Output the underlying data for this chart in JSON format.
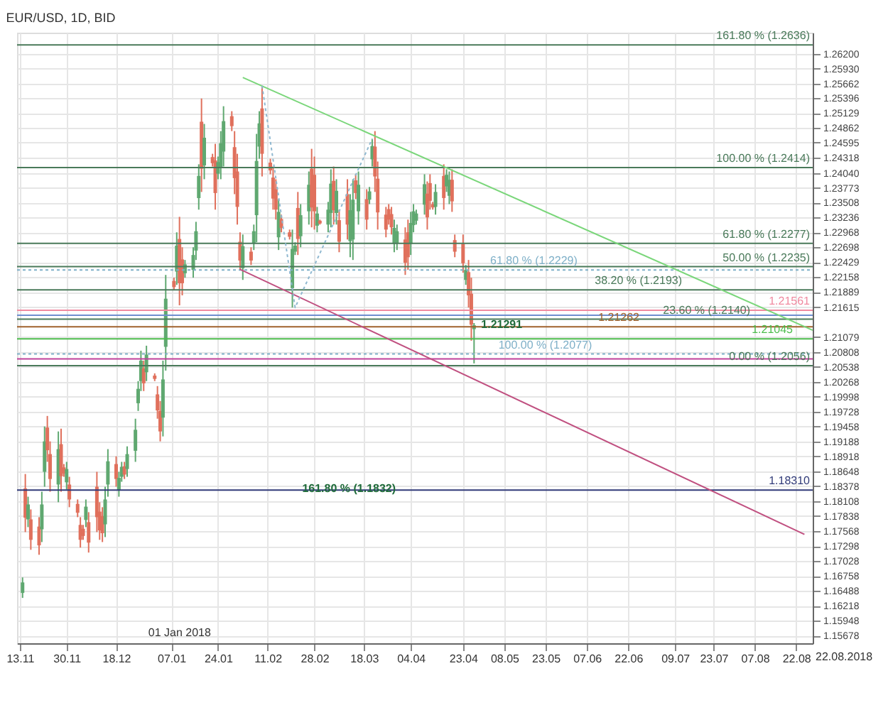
{
  "chart_data": {
    "type": "candlestick",
    "title": "EUR/USD, 1D, BID",
    "x": [
      "2017-11-14",
      "2017-11-15",
      "2017-11-16",
      "2017-11-17",
      "2017-11-20",
      "2017-11-21",
      "2017-11-22",
      "2017-11-23",
      "2017-11-24",
      "2017-11-27",
      "2017-11-28",
      "2017-11-29",
      "2017-11-30",
      "2017-12-01",
      "2017-12-04",
      "2017-12-05",
      "2017-12-06",
      "2017-12-07",
      "2017-12-08",
      "2017-12-11",
      "2017-12-12",
      "2017-12-13",
      "2017-12-14",
      "2017-12-15",
      "2017-12-18",
      "2017-12-19",
      "2017-12-20",
      "2017-12-21",
      "2017-12-22",
      "2017-12-25",
      "2017-12-26",
      "2017-12-27",
      "2017-12-28",
      "2017-12-29",
      "2018-01-01",
      "2018-01-02",
      "2018-01-03",
      "2018-01-04",
      "2018-01-05",
      "2018-01-08",
      "2018-01-09",
      "2018-01-10",
      "2018-01-11",
      "2018-01-12",
      "2018-01-15",
      "2018-01-16",
      "2018-01-17",
      "2018-01-18",
      "2018-01-19",
      "2018-01-22",
      "2018-01-23",
      "2018-01-24",
      "2018-01-25",
      "2018-01-26",
      "2018-01-29",
      "2018-01-30",
      "2018-01-31",
      "2018-02-01",
      "2018-02-02",
      "2018-02-05",
      "2018-02-06",
      "2018-02-07",
      "2018-02-08",
      "2018-02-09",
      "2018-02-12",
      "2018-02-13",
      "2018-02-14",
      "2018-02-15",
      "2018-02-16",
      "2018-02-19",
      "2018-02-20",
      "2018-02-21",
      "2018-02-22",
      "2018-02-23",
      "2018-02-26",
      "2018-02-27",
      "2018-02-28",
      "2018-03-01",
      "2018-03-02",
      "2018-03-05",
      "2018-03-06",
      "2018-03-07",
      "2018-03-08",
      "2018-03-09",
      "2018-03-12",
      "2018-03-13",
      "2018-03-14",
      "2018-03-15",
      "2018-03-16",
      "2018-03-19",
      "2018-03-20",
      "2018-03-21",
      "2018-03-22",
      "2018-03-23",
      "2018-03-26",
      "2018-03-27",
      "2018-03-28",
      "2018-03-29",
      "2018-03-30",
      "2018-04-02",
      "2018-04-03",
      "2018-04-04",
      "2018-04-05",
      "2018-04-06",
      "2018-04-09",
      "2018-04-10",
      "2018-04-11",
      "2018-04-12",
      "2018-04-13",
      "2018-04-16",
      "2018-04-17",
      "2018-04-18",
      "2018-04-19",
      "2018-04-20",
      "2018-04-23",
      "2018-04-24",
      "2018-04-25",
      "2018-04-26",
      "2018-04-27"
    ],
    "ohlc": [
      [
        1.1645,
        1.1673,
        1.1636,
        1.1664
      ],
      [
        1.1834,
        1.186,
        1.1755,
        1.1781
      ],
      [
        1.1778,
        1.1819,
        1.1764,
        1.1805
      ],
      [
        1.1778,
        1.1796,
        1.1723,
        1.1741
      ],
      [
        1.1765,
        1.1782,
        1.1714,
        1.1731
      ],
      [
        1.176,
        1.1828,
        1.1737,
        1.1805
      ],
      [
        1.1864,
        1.1946,
        1.1837,
        1.1919
      ],
      [
        1.1944,
        1.1965,
        1.1882,
        1.1903
      ],
      [
        1.1896,
        1.1919,
        1.1828,
        1.1851
      ],
      [
        1.1841,
        1.1937,
        1.1809,
        1.1905
      ],
      [
        1.1914,
        1.1942,
        1.1828,
        1.1856
      ],
      [
        1.1872,
        1.1878,
        1.1855,
        1.1861
      ],
      [
        1.1845,
        1.1882,
        1.1832,
        1.1869
      ],
      [
        1.1841,
        1.1855,
        1.18,
        1.1814
      ],
      [
        1.1806,
        1.1814,
        1.1782,
        1.179
      ],
      [
        1.1768,
        1.1782,
        1.1727,
        1.1741
      ],
      [
        1.1761,
        1.1768,
        1.1741,
        1.1748
      ],
      [
        1.1777,
        1.1814,
        1.1764,
        1.1801
      ],
      [
        1.1773,
        1.1791,
        1.1718,
        1.1736
      ],
      [
        1.1837,
        1.1864,
        1.1755,
        1.1782
      ],
      [
        1.1792,
        1.1809,
        1.1741,
        1.1758
      ],
      [
        1.1784,
        1.18,
        1.1737,
        1.1753
      ],
      [
        1.1769,
        1.1837,
        1.1746,
        1.1814
      ],
      [
        1.1841,
        1.1905,
        1.1819,
        1.1883
      ],
      [
        1.1878,
        1.1892,
        1.1837,
        1.1851
      ],
      [
        1.183,
        1.1864,
        1.1819,
        1.1853
      ],
      [
        1.1855,
        1.1882,
        1.1846,
        1.1873
      ],
      [
        1.1874,
        1.1882,
        1.1851,
        1.1859
      ],
      [
        1.1869,
        1.191,
        1.1855,
        1.1896
      ],
      [
        1.1902,
        1.196,
        1.1882,
        1.194
      ],
      [
        1.1988,
        1.2028,
        1.1974,
        1.2014
      ],
      [
        1.2028,
        1.2083,
        1.201,
        1.2065
      ],
      [
        1.2051,
        1.2065,
        1.201,
        1.2024
      ],
      [
        1.2044,
        1.2092,
        1.2028,
        1.2076
      ],
      [
        1.2038,
        1.2042,
        1.2028,
        1.2032
      ],
      [
        1.2004,
        1.2019,
        1.196,
        1.1975
      ],
      [
        1.1974,
        1.1992,
        1.1919,
        1.1937
      ],
      [
        1.1962,
        1.2065,
        1.1928,
        1.2031
      ],
      [
        1.209,
        1.222,
        1.2047,
        1.2177
      ],
      [
        1.2209,
        1.2215,
        1.2192,
        1.2198
      ],
      [
        1.2226,
        1.2297,
        1.2202,
        1.2273
      ],
      [
        1.2285,
        1.2325,
        1.2165,
        1.2205
      ],
      [
        1.2248,
        1.227,
        1.2183,
        1.2205
      ],
      [
        1.2223,
        1.2247,
        1.2215,
        1.2239
      ],
      [
        1.2229,
        1.227,
        1.2215,
        1.2256
      ],
      [
        1.2264,
        1.2316,
        1.2247,
        1.2299
      ],
      [
        1.2359,
        1.242,
        1.2338,
        1.2399
      ],
      [
        1.2497,
        1.2539,
        1.237,
        1.2412
      ],
      [
        1.2418,
        1.2493,
        1.2393,
        1.2468
      ],
      [
        1.2433,
        1.2439,
        1.2416,
        1.2422
      ],
      [
        1.2427,
        1.2457,
        1.2338,
        1.2368
      ],
      [
        1.2403,
        1.2434,
        1.2393,
        1.2424
      ],
      [
        1.2415,
        1.248,
        1.2393,
        1.2458
      ],
      [
        1.2443,
        1.2525,
        1.2416,
        1.2498
      ],
      [
        1.2507,
        1.2516,
        1.248,
        1.2489
      ],
      [
        1.2451,
        1.248,
        1.2366,
        1.2395
      ],
      [
        1.2407,
        1.2439,
        1.2311,
        1.2343
      ],
      [
        1.228,
        1.2297,
        1.2229,
        1.2246
      ],
      [
        1.2232,
        1.2293,
        1.2211,
        1.2272
      ],
      [
        1.2262,
        1.227,
        1.2238,
        1.2246
      ],
      [
        1.2277,
        1.2311,
        1.2265,
        1.2299
      ],
      [
        1.2328,
        1.2475,
        1.2279,
        1.2426
      ],
      [
        1.2452,
        1.2516,
        1.243,
        1.2494
      ],
      [
        1.2521,
        1.2562,
        1.2398,
        1.2439
      ],
      [
        1.2423,
        1.243,
        1.2402,
        1.2409
      ],
      [
        1.2396,
        1.2416,
        1.2338,
        1.2358
      ],
      [
        1.2375,
        1.2393,
        1.232,
        1.2338
      ],
      [
        1.2288,
        1.2357,
        1.2265,
        1.2334
      ],
      [
        1.2321,
        1.2329,
        1.2297,
        1.2305
      ],
      [
        1.2297,
        1.2302,
        1.2284,
        1.2289
      ],
      [
        1.2196,
        1.2302,
        1.2161,
        1.2267
      ],
      [
        1.2262,
        1.2279,
        1.2256,
        1.2273
      ],
      [
        1.2341,
        1.237,
        1.2256,
        1.2285
      ],
      [
        1.229,
        1.2348,
        1.227,
        1.2328
      ],
      [
        1.2335,
        1.2407,
        1.2311,
        1.2383
      ],
      [
        1.2412,
        1.2448,
        1.2306,
        1.2342
      ],
      [
        1.2401,
        1.2434,
        1.2302,
        1.2335
      ],
      [
        1.2309,
        1.2343,
        1.2297,
        1.2331
      ],
      [
        1.2318,
        1.232,
        1.2311,
        1.2313
      ],
      [
        1.2311,
        1.2352,
        1.2297,
        1.2338
      ],
      [
        1.2332,
        1.2411,
        1.2306,
        1.2385
      ],
      [
        1.239,
        1.2416,
        1.2311,
        1.2337
      ],
      [
        1.2332,
        1.2393,
        1.2311,
        1.2372
      ],
      [
        1.2319,
        1.2338,
        1.2261,
        1.228
      ],
      [
        1.2366,
        1.2393,
        1.2284,
        1.2311
      ],
      [
        1.2281,
        1.2366,
        1.2252,
        1.2337
      ],
      [
        1.2284,
        1.2393,
        1.2247,
        1.2356
      ],
      [
        1.2391,
        1.2402,
        1.2357,
        1.2368
      ],
      [
        1.2335,
        1.2407,
        1.2311,
        1.2383
      ],
      [
        1.2357,
        1.2375,
        1.2302,
        1.232
      ],
      [
        1.2356,
        1.2379,
        1.2348,
        1.2371
      ],
      [
        1.2429,
        1.2466,
        1.2416,
        1.2453
      ],
      [
        1.2452,
        1.248,
        1.237,
        1.2398
      ],
      [
        1.2394,
        1.2425,
        1.2302,
        1.2333
      ],
      [
        1.2329,
        1.2343,
        1.2288,
        1.2302
      ],
      [
        1.2339,
        1.2348,
        1.2311,
        1.232
      ],
      [
        1.233,
        1.2343,
        1.2293,
        1.2306
      ],
      [
        1.2276,
        1.232,
        1.2261,
        1.2305
      ],
      [
        1.2277,
        1.2311,
        1.2265,
        1.2299
      ],
      [
        1.2284,
        1.2306,
        1.222,
        1.2242
      ],
      [
        1.2297,
        1.232,
        1.2229,
        1.2252
      ],
      [
        1.2276,
        1.2334,
        1.2256,
        1.2314
      ],
      [
        1.231,
        1.2348,
        1.2297,
        1.2335
      ],
      [
        1.2318,
        1.2338,
        1.2311,
        1.2331
      ],
      [
        1.2347,
        1.2402,
        1.2329,
        1.2384
      ],
      [
        1.2367,
        1.2389,
        1.2302,
        1.2324
      ],
      [
        1.2386,
        1.2402,
        1.2338,
        1.2354
      ],
      [
        1.2348,
        1.2352,
        1.2338,
        1.2342
      ],
      [
        1.2343,
        1.2384,
        1.2329,
        1.237
      ],
      [
        1.2399,
        1.242,
        1.2338,
        1.2359
      ],
      [
        1.238,
        1.2411,
        1.237,
        1.2401
      ],
      [
        1.2363,
        1.2407,
        1.2348,
        1.2392
      ],
      [
        1.2392,
        1.2411,
        1.2334,
        1.2353
      ],
      [
        1.2283,
        1.2293,
        1.2252,
        1.2262
      ],
      [
        1.2276,
        1.2293,
        1.2224,
        1.2241
      ],
      [
        1.2211,
        1.2238,
        1.2202,
        1.2229
      ],
      [
        1.2225,
        1.2247,
        1.2161,
        1.2183
      ],
      [
        1.2186,
        1.2215,
        1.2101,
        1.213
      ],
      [
        1.2122,
        1.2133,
        1.206,
        1.2129
      ]
    ],
    "colors": [
      "#5fa870",
      "#e0705c",
      "#5fa870",
      "#e0705c",
      "#e0705c",
      "#5fa870",
      "#5fa870",
      "#e0705c",
      "#e0705c",
      "#5fa870",
      "#e0705c",
      "#e0705c",
      "#5fa870",
      "#e0705c",
      "#e0705c",
      "#e0705c",
      "#e0705c",
      "#5fa870",
      "#e0705c",
      "#e0705c",
      "#e0705c",
      "#e0705c",
      "#5fa870",
      "#5fa870",
      "#e0705c",
      "#5fa870",
      "#5fa870",
      "#e0705c",
      "#5fa870",
      "#5fa870",
      "#5fa870",
      "#5fa870",
      "#e0705c",
      "#5fa870",
      "#e0705c",
      "#e0705c",
      "#e0705c",
      "#5fa870",
      "#5fa870",
      "#e0705c",
      "#5fa870",
      "#e0705c",
      "#e0705c",
      "#5fa870",
      "#5fa870",
      "#5fa870",
      "#5fa870",
      "#e0705c",
      "#5fa870",
      "#e0705c",
      "#e0705c",
      "#5fa870",
      "#5fa870",
      "#5fa870",
      "#e0705c",
      "#e0705c",
      "#e0705c",
      "#e0705c",
      "#5fa870",
      "#e0705c",
      "#5fa870",
      "#5fa870",
      "#5fa870",
      "#e0705c",
      "#e0705c",
      "#e0705c",
      "#e0705c",
      "#5fa870",
      "#e0705c",
      "#e0705c",
      "#5fa870",
      "#5fa870",
      "#e0705c",
      "#5fa870",
      "#5fa870",
      "#e0705c",
      "#e0705c",
      "#5fa870",
      "#e0705c",
      "#5fa870",
      "#5fa870",
      "#e0705c",
      "#5fa870",
      "#e0705c",
      "#e0705c",
      "#5fa870",
      "#5fa870",
      "#e0705c",
      "#5fa870",
      "#e0705c",
      "#5fa870",
      "#5fa870",
      "#e0705c",
      "#e0705c",
      "#e0705c",
      "#e0705c",
      "#e0705c",
      "#5fa870",
      "#5fa870",
      "#e0705c",
      "#e0705c",
      "#5fa870",
      "#5fa870",
      "#5fa870",
      "#5fa870",
      "#e0705c",
      "#e0705c",
      "#e0705c",
      "#5fa870",
      "#e0705c",
      "#5fa870",
      "#5fa870",
      "#e0705c",
      "#e0705c",
      "#e0705c",
      "#5fa870",
      "#e0705c",
      "#e0705c",
      "#5fa870"
    ],
    "series": [
      {
        "type": "line",
        "color": "#7ad67a",
        "line_style": "solid",
        "x": [
          "2018-02-02",
          "2018-08-28"
        ],
        "values": [
          1.2577,
          1.212
        ]
      },
      {
        "type": "line",
        "color": "#c05080",
        "line_style": "solid",
        "x": [
          "2018-02-01",
          "2018-08-25"
        ],
        "values": [
          1.223,
          1.1751
        ]
      },
      {
        "type": "line",
        "color": "#8fb8d0",
        "line_style": "dotted",
        "x": [
          "2018-02-09",
          "2018-02-21",
          "2018-03-21"
        ],
        "values": [
          1.2562,
          1.2161,
          1.2466
        ]
      }
    ],
    "ref_lines": [
      {
        "axis": "y",
        "value": 1.2636,
        "label": "161.80 % (1.2636)",
        "color": "#4a7a5a",
        "line_style": "solid"
      },
      {
        "axis": "y",
        "value": 1.2414,
        "label": "100.00 % (1.2414)",
        "color": "#4a7a5a",
        "line_style": "solid"
      },
      {
        "axis": "y",
        "value": 1.2277,
        "label": "61.80 % (1.2277)",
        "color": "#4a7a5a",
        "line_style": "solid"
      },
      {
        "axis": "y",
        "value": 1.2235,
        "label": "50.00 % (1.2235)",
        "color": "#4a7a5a",
        "line_style": "solid"
      },
      {
        "axis": "y",
        "value": 1.2193,
        "label": "38.20 % (1.2193)",
        "color": "#4a7a5a",
        "line_style": "solid"
      },
      {
        "axis": "y",
        "value": 1.214,
        "label": "23.60 % (1.2140)",
        "color": "#4a7a5a",
        "line_style": "solid"
      },
      {
        "axis": "y",
        "value": 1.2056,
        "label": "0.00 % (1.2056)",
        "color": "#4a7a5a",
        "line_style": "solid"
      },
      {
        "axis": "y",
        "value": 1.2229,
        "label": "61.80 % (1.2229)",
        "color": "#7fb0c8",
        "line_style": "dotted"
      },
      {
        "axis": "y",
        "value": 1.2077,
        "label": "100.00 % (1.2077)",
        "color": "#7fb0c8",
        "line_style": "dotted"
      },
      {
        "axis": "y",
        "value": 1.21561,
        "label": "1.21561",
        "color": "#f08aa0",
        "line_style": "solid"
      },
      {
        "axis": "y",
        "value": 1.2147,
        "label": null,
        "color": "#6f8fd0",
        "line_style": "solid"
      },
      {
        "axis": "y",
        "value": 1.21262,
        "label": "1.21262",
        "color": "#a0622d",
        "line_style": "solid"
      },
      {
        "axis": "y",
        "value": 1.21045,
        "label": "1.21045",
        "color": "#4cbc4c",
        "line_style": "solid"
      },
      {
        "axis": "y",
        "value": 1.2068,
        "label": null,
        "color": "#c0409a",
        "line_style": "solid"
      },
      {
        "axis": "y",
        "value": 1.1831,
        "label": "1.18310",
        "color": "#303a78",
        "line_style": "solid"
      }
    ],
    "annotations": [
      "01 Jan 2018",
      {
        "text": "161.80 % (1.1832)",
        "x": "2018-02-21",
        "y": 1.1832
      },
      {
        "text": "1.21291",
        "x": "2018-04-27",
        "y": 1.21291
      },
      "22.08.2018"
    ],
    "xlim": [
      "2017-11-12",
      "2018-08-28"
    ],
    "ylim": [
      1.1554,
      1.2658
    ],
    "xticks": [
      {
        "value": "2017-11-13",
        "label": "13.11"
      },
      {
        "value": "2017-11-30",
        "label": "30.11"
      },
      {
        "value": "2017-12-18",
        "label": "18.12"
      },
      {
        "value": "2018-01-07",
        "label": "07.01"
      },
      {
        "value": "2018-01-24",
        "label": "24.01"
      },
      {
        "value": "2018-02-11",
        "label": "11.02"
      },
      {
        "value": "2018-02-28",
        "label": "28.02"
      },
      {
        "value": "2018-03-18",
        "label": "18.03"
      },
      {
        "value": "2018-04-04",
        "label": "04.04"
      },
      {
        "value": "2018-04-23",
        "label": "23.04"
      },
      {
        "value": "2018-05-08",
        "label": "08.05"
      },
      {
        "value": "2018-05-23",
        "label": "23.05"
      },
      {
        "value": "2018-06-07",
        "label": "07.06"
      },
      {
        "value": "2018-06-22",
        "label": "22.06"
      },
      {
        "value": "2018-07-09",
        "label": "09.07"
      },
      {
        "value": "2018-07-23",
        "label": "23.07"
      },
      {
        "value": "2018-08-07",
        "label": "07.08"
      },
      {
        "value": "2018-08-22",
        "label": "22.08"
      }
    ],
    "yticks": [
      {
        "value": 1.262,
        "label": "1.26200"
      },
      {
        "value": 1.2593,
        "label": "1.25930"
      },
      1.25662,
      1.25396,
      1.25129,
      1.24862,
      1.24595,
      1.24318,
      {
        "value": 1.2404,
        "label": "1.24040"
      },
      1.23773,
      1.23508,
      1.23236,
      1.22968,
      1.22698,
      1.22429,
      1.22158,
      1.21889,
      1.21615,
      1.21079,
      1.20808,
      1.20538,
      1.20268,
      1.19998,
      1.19728,
      1.19458,
      1.19188,
      1.18918,
      1.18648,
      1.18378,
      1.18108,
      1.17838,
      1.17568,
      1.17298,
      1.17028,
      1.16758,
      1.16488,
      1.16218,
      1.15948,
      1.15678
    ],
    "grid": true
  }
}
